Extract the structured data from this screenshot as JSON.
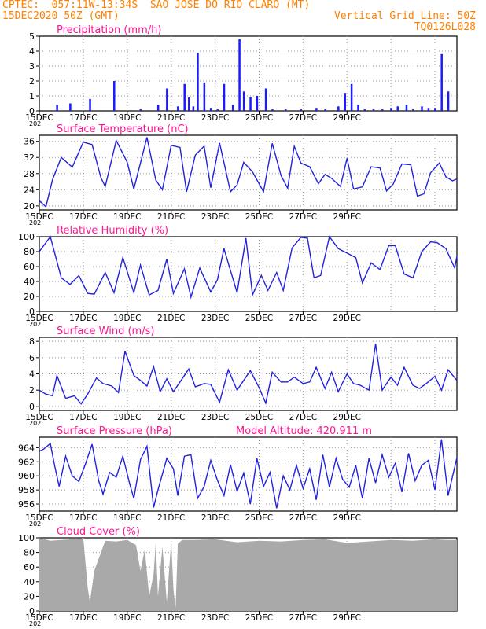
{
  "header": {
    "line1_left": "CPTEC:  057:11W-13:34S  SAO JOSE DO RIO CLARO (MT)",
    "line2_left": "15DEC2020 50Z (GMT)",
    "line2_right": "Vertical Grid Line: 50Z",
    "line3_right": "TQ0126L028"
  },
  "colors": {
    "title": "#ff1493",
    "line": "#2222dd",
    "bar": "#1a1aff",
    "cloud": "#a9a9a9",
    "header": "#ff8000"
  },
  "x_tick_labels": [
    "15DEC",
    "17DEC",
    "19DEC",
    "21DEC",
    "23DEC",
    "25DEC",
    "27DEC",
    "29DEC"
  ],
  "year_label": "202",
  "model_altitude": "Model Altitude: 420.911 m",
  "chart_data": [
    {
      "type": "bar",
      "title": "Precipitation (mm/h)",
      "ylim": [
        0,
        5
      ],
      "yticks": [
        "0",
        "1",
        "2",
        "3",
        "4",
        "5"
      ],
      "x_days": [
        0.8,
        1.4,
        2.3,
        3.4,
        4.6,
        5.4,
        5.8,
        6.3,
        6.6,
        6.8,
        7.0,
        7.2,
        7.5,
        7.8,
        8.1,
        8.4,
        8.8,
        9.1,
        9.3,
        9.6,
        9.9,
        10.3,
        10.6,
        11.2,
        11.9,
        12.6,
        13.0,
        13.6,
        13.9,
        14.2,
        14.5,
        14.8,
        15.2,
        15.6,
        16.0,
        16.3,
        16.7,
        17.0,
        17.4,
        17.7,
        18.0,
        18.3,
        18.6
      ],
      "values": [
        0.4,
        0.5,
        0.8,
        2.0,
        0.1,
        0.4,
        1.5,
        0.3,
        1.8,
        0.9,
        0.3,
        3.9,
        1.9,
        0.2,
        0.1,
        1.8,
        0.4,
        4.8,
        1.3,
        0.9,
        1.0,
        1.5,
        0.1,
        0.1,
        0.1,
        0.2,
        0.1,
        0.3,
        1.2,
        1.8,
        0.4,
        0.1,
        0.1,
        0.1,
        0.2,
        0.3,
        0.4,
        0.1,
        0.3,
        0.2,
        0.2,
        3.8,
        1.3
      ]
    },
    {
      "type": "line",
      "title": "Surface Temperature (nC)",
      "ylim": [
        19,
        37.5
      ],
      "yticks": [
        "20",
        "24",
        "28",
        "32",
        "36"
      ],
      "x_days": [
        0,
        0.3,
        0.6,
        1.0,
        1.5,
        2.0,
        2.4,
        2.8,
        3.0,
        3.5,
        4.0,
        4.3,
        4.9,
        5.3,
        5.6,
        6.0,
        6.4,
        6.7,
        7.1,
        7.5,
        7.8,
        8.2,
        8.7,
        9.0,
        9.3,
        9.7,
        10.2,
        10.6,
        11.0,
        11.3,
        11.6,
        11.9,
        12.3,
        12.7,
        13.0,
        13.3,
        13.7,
        14.0,
        14.3,
        14.7,
        15.1,
        15.5,
        15.8,
        16.1,
        16.5,
        16.9,
        17.2,
        17.5,
        17.8,
        18.2,
        18.5,
        18.8,
        19.0
      ],
      "values": [
        21.3,
        19.8,
        26.5,
        32,
        29.6,
        35.8,
        35.2,
        27,
        24.8,
        36.2,
        30.8,
        24.2,
        37.0,
        26.4,
        24.0,
        35.0,
        34.5,
        23.5,
        32.6,
        34.8,
        24.5,
        35.6,
        23.5,
        25.2,
        30.8,
        28.4,
        23.5,
        35.5,
        27.5,
        24.4,
        34.8,
        30.6,
        29.7,
        25.5,
        27.8,
        26.8,
        24.8,
        31.8,
        24.2,
        24.7,
        29.7,
        29.4,
        23.7,
        25.4,
        30.4,
        30.2,
        22.4,
        23.0,
        28.2,
        30.6,
        27.2,
        26.2,
        26.7
      ]
    },
    {
      "type": "line",
      "title": "Relative Humidity (%)",
      "ylim": [
        0,
        100
      ],
      "yticks": [
        "0",
        "20",
        "40",
        "60",
        "80",
        "100"
      ],
      "x_days": [
        0,
        0.5,
        1.0,
        1.4,
        1.8,
        2.2,
        2.5,
        3.0,
        3.4,
        3.8,
        4.3,
        4.6,
        5.0,
        5.4,
        5.8,
        6.1,
        6.6,
        6.9,
        7.3,
        7.8,
        8.1,
        8.4,
        9.0,
        9.4,
        9.7,
        10.1,
        10.4,
        10.8,
        11.1,
        11.5,
        11.9,
        12.2,
        12.5,
        12.8,
        13.2,
        13.6,
        14.0,
        14.4,
        14.7,
        15.1,
        15.5,
        15.9,
        16.2,
        16.6,
        17.0,
        17.4,
        17.8,
        18.1,
        18.5,
        18.9,
        19.0
      ],
      "values": [
        80,
        100,
        45,
        36,
        48,
        24,
        23,
        52,
        25,
        72,
        25,
        62,
        22,
        28,
        70,
        24,
        57,
        19,
        58,
        26,
        42,
        84,
        25,
        98,
        22,
        48,
        28,
        52,
        28,
        85,
        99,
        98,
        45,
        48,
        100,
        84,
        78,
        72,
        38,
        65,
        56,
        88,
        88,
        50,
        45,
        80,
        93,
        92,
        84,
        58,
        74
      ]
    },
    {
      "type": "line",
      "title": "Surface Wind (m/s)",
      "ylim": [
        -0.5,
        8.5
      ],
      "yticks": [
        "0",
        "2",
        "4",
        "6",
        "8"
      ],
      "x_days": [
        0,
        0.3,
        0.6,
        0.8,
        1.2,
        1.6,
        1.9,
        2.2,
        2.6,
        2.9,
        3.3,
        3.6,
        3.9,
        4.3,
        4.6,
        4.9,
        5.2,
        5.5,
        5.8,
        6.1,
        6.4,
        6.8,
        7.1,
        7.5,
        7.8,
        8.2,
        8.6,
        9.0,
        9.3,
        9.6,
        10.0,
        10.3,
        10.6,
        11.0,
        11.3,
        11.6,
        12.0,
        12.3,
        12.6,
        13.0,
        13.3,
        13.6,
        14.0,
        14.3,
        14.6,
        15.0,
        15.3,
        15.6,
        16.0,
        16.3,
        16.6,
        17.0,
        17.3,
        17.6,
        18.0,
        18.3,
        18.6,
        19.0
      ],
      "values": [
        2.0,
        1.5,
        1.3,
        3.8,
        1.0,
        1.3,
        0.3,
        1.5,
        3.5,
        2.8,
        2.5,
        1.7,
        6.8,
        3.8,
        3.2,
        2.5,
        4.9,
        1.8,
        3.4,
        1.8,
        3.0,
        4.6,
        2.4,
        2.8,
        2.7,
        0.5,
        4.5,
        2.0,
        3.2,
        4.4,
        2.3,
        0.4,
        4.2,
        3.0,
        3.0,
        3.6,
        2.8,
        3.0,
        4.8,
        2.2,
        4.2,
        1.8,
        4.0,
        2.8,
        2.6,
        2.0,
        7.7,
        2.0,
        3.6,
        2.6,
        4.8,
        2.6,
        2.2,
        2.8,
        3.7,
        2.0,
        4.5,
        3.2
      ]
    },
    {
      "type": "line",
      "title": "Surface Pressure (hPa)",
      "ylim": [
        955,
        965.5
      ],
      "yticks": [
        "956",
        "958",
        "960",
        "962",
        "964"
      ],
      "x_days": [
        0,
        0.2,
        0.5,
        0.7,
        0.9,
        1.2,
        1.5,
        1.8,
        2.1,
        2.4,
        2.7,
        2.9,
        3.2,
        3.5,
        3.8,
        4.1,
        4.3,
        4.6,
        4.9,
        5.2,
        5.4,
        5.8,
        6.1,
        6.3,
        6.6,
        6.9,
        7.2,
        7.5,
        7.8,
        8.1,
        8.4,
        8.7,
        9.0,
        9.3,
        9.6,
        9.9,
        10.2,
        10.5,
        10.8,
        11.1,
        11.4,
        11.7,
        12.0,
        12.3,
        12.6,
        12.9,
        13.2,
        13.5,
        13.8,
        14.1,
        14.4,
        14.7,
        15.0,
        15.3,
        15.6,
        15.9,
        16.2,
        16.5,
        16.8,
        17.1,
        17.4,
        17.7,
        18.0,
        18.3,
        18.6,
        19.0
      ],
      "values": [
        963.5,
        963.8,
        964.6,
        961.4,
        958.5,
        962.8,
        960.0,
        959.2,
        961.7,
        964.5,
        959.3,
        957.4,
        960.5,
        959.8,
        962.8,
        959.0,
        956.8,
        962.3,
        964.2,
        955.5,
        958.0,
        962.5,
        961.0,
        957.2,
        962.8,
        963.0,
        956.8,
        958.5,
        962.2,
        959.4,
        957.2,
        961.6,
        957.8,
        960.4,
        956.0,
        962.5,
        958.5,
        960.5,
        955.4,
        960.0,
        958.0,
        961.5,
        958.2,
        961.0,
        956.6,
        963.0,
        958.4,
        962.5,
        959.5,
        958.4,
        961.5,
        956.8,
        962.5,
        959.0,
        963.0,
        959.8,
        961.8,
        957.7,
        963.2,
        959.3,
        961.5,
        962.2,
        958.0,
        965.2,
        957.2,
        962.6
      ]
    },
    {
      "type": "area",
      "title": "Cloud Cover (%)",
      "ylim": [
        0,
        100
      ],
      "yticks": [
        "0",
        "20",
        "40",
        "60",
        "80",
        "100"
      ],
      "x_days": [
        0,
        0.5,
        1.0,
        1.5,
        2.0,
        2.2,
        2.3,
        2.5,
        3.0,
        3.5,
        4.0,
        4.4,
        4.6,
        4.8,
        5.0,
        5.2,
        5.3,
        5.4,
        5.6,
        5.8,
        6.0,
        6.1,
        6.2,
        6.3,
        6.5,
        7.0,
        8.0,
        9.0,
        10.0,
        11.0,
        12.0,
        13.0,
        14.0,
        15.0,
        16.0,
        17.0,
        18.0,
        18.5,
        19.0
      ],
      "values": [
        100,
        96,
        97,
        98,
        100,
        32,
        12,
        55,
        96,
        95,
        97,
        90,
        55,
        84,
        20,
        50,
        94,
        20,
        88,
        12,
        96,
        30,
        4,
        92,
        97,
        97,
        98,
        94,
        96,
        95,
        97,
        98,
        93,
        95,
        97,
        96,
        98,
        97,
        97
      ]
    }
  ]
}
